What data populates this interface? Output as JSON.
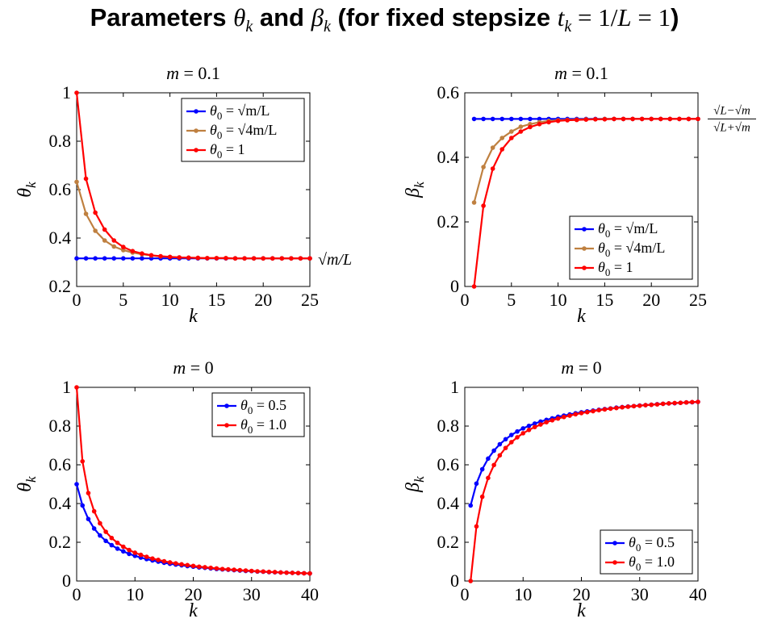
{
  "title": {
    "prefix": "Parameters ",
    "theta": "θ",
    "k1": "k",
    "and": " and ",
    "beta": "β",
    "k2": "k",
    "paren_open": " (for fixed stepsize ",
    "t": "t",
    "k3": "k",
    "eq": " = 1/",
    "L1": "L",
    "eq2": " = 1",
    "paren_close": ")"
  },
  "colors": {
    "blue": "#0000ff",
    "brown": "#bf8040",
    "red": "#ff0000"
  },
  "chart_data": [
    {
      "id": "theta_m01",
      "type": "line",
      "title": "m = 0.1",
      "xlabel": "k",
      "ylabel": "θk",
      "xlim": [
        0,
        25
      ],
      "ylim": [
        0.2,
        1
      ],
      "xticks": [
        0,
        5,
        10,
        15,
        20,
        25
      ],
      "yticks": [
        0.2,
        0.4,
        0.6,
        0.8,
        1
      ],
      "ytick_labels": [
        "0.2",
        "0.4",
        "0.6",
        "0.8",
        "1"
      ],
      "legend_position": "top-right",
      "annotation": "√m/L",
      "series": [
        {
          "name": "θ0 = √m/L",
          "color": "blue",
          "x": [
            0,
            1,
            2,
            3,
            4,
            5,
            6,
            7,
            8,
            9,
            10,
            11,
            12,
            13,
            14,
            15,
            16,
            17,
            18,
            19,
            20,
            21,
            22,
            23,
            24,
            25
          ],
          "y": [
            0.316,
            0.316,
            0.316,
            0.316,
            0.316,
            0.316,
            0.316,
            0.316,
            0.316,
            0.316,
            0.316,
            0.316,
            0.316,
            0.316,
            0.316,
            0.316,
            0.316,
            0.316,
            0.316,
            0.316,
            0.316,
            0.316,
            0.316,
            0.316,
            0.316,
            0.316
          ]
        },
        {
          "name": "θ0 = √4m/L",
          "color": "brown",
          "x": [
            0,
            1,
            2,
            3,
            4,
            5,
            6,
            7,
            8,
            9,
            10,
            11,
            12,
            13,
            14,
            15,
            16,
            17,
            18,
            19,
            20,
            21,
            22,
            23,
            24,
            25
          ],
          "y": [
            0.632,
            0.5,
            0.43,
            0.39,
            0.365,
            0.35,
            0.34,
            0.333,
            0.328,
            0.324,
            0.322,
            0.32,
            0.319,
            0.318,
            0.317,
            0.317,
            0.317,
            0.316,
            0.316,
            0.316,
            0.316,
            0.316,
            0.316,
            0.316,
            0.316,
            0.316
          ]
        },
        {
          "name": "θ0 = 1",
          "color": "red",
          "x": [
            0,
            1,
            2,
            3,
            4,
            5,
            6,
            7,
            8,
            9,
            10,
            11,
            12,
            13,
            14,
            15,
            16,
            17,
            18,
            19,
            20,
            21,
            22,
            23,
            24,
            25
          ],
          "y": [
            1.0,
            0.645,
            0.505,
            0.435,
            0.39,
            0.363,
            0.346,
            0.336,
            0.329,
            0.325,
            0.322,
            0.32,
            0.319,
            0.318,
            0.317,
            0.317,
            0.317,
            0.316,
            0.316,
            0.316,
            0.316,
            0.316,
            0.316,
            0.316,
            0.316,
            0.316
          ]
        }
      ]
    },
    {
      "id": "beta_m01",
      "type": "line",
      "title": "m = 0.1",
      "xlabel": "k",
      "ylabel": "βk",
      "xlim": [
        0,
        25
      ],
      "ylim": [
        0,
        0.6
      ],
      "xticks": [
        0,
        5,
        10,
        15,
        20,
        25
      ],
      "yticks": [
        0,
        0.2,
        0.4,
        0.6
      ],
      "ytick_labels": [
        "0",
        "0.2",
        "0.4",
        "0.6"
      ],
      "legend_position": "bottom-right",
      "annotation_num": "√L−√m",
      "annotation_den": "√L+√m",
      "series": [
        {
          "name": "θ0 = √m/L",
          "color": "blue",
          "x": [
            1,
            2,
            3,
            4,
            5,
            6,
            7,
            8,
            9,
            10,
            11,
            12,
            13,
            14,
            15,
            16,
            17,
            18,
            19,
            20,
            21,
            22,
            23,
            24,
            25
          ],
          "y": [
            0.519,
            0.519,
            0.519,
            0.519,
            0.519,
            0.519,
            0.519,
            0.519,
            0.519,
            0.519,
            0.519,
            0.519,
            0.519,
            0.519,
            0.519,
            0.519,
            0.519,
            0.519,
            0.519,
            0.519,
            0.519,
            0.519,
            0.519,
            0.519,
            0.519
          ]
        },
        {
          "name": "θ0 = √4m/L",
          "color": "brown",
          "x": [
            1,
            2,
            3,
            4,
            5,
            6,
            7,
            8,
            9,
            10,
            11,
            12,
            13,
            14,
            15,
            16,
            17,
            18,
            19,
            20,
            21,
            22,
            23,
            24,
            25
          ],
          "y": [
            0.26,
            0.37,
            0.43,
            0.46,
            0.48,
            0.495,
            0.503,
            0.509,
            0.513,
            0.515,
            0.516,
            0.517,
            0.518,
            0.518,
            0.519,
            0.519,
            0.519,
            0.519,
            0.519,
            0.519,
            0.519,
            0.519,
            0.519,
            0.519,
            0.519
          ]
        },
        {
          "name": "θ0 = 1",
          "color": "red",
          "x": [
            1,
            2,
            3,
            4,
            5,
            6,
            7,
            8,
            9,
            10,
            11,
            12,
            13,
            14,
            15,
            16,
            17,
            18,
            19,
            20,
            21,
            22,
            23,
            24,
            25
          ],
          "y": [
            0.0,
            0.25,
            0.365,
            0.425,
            0.46,
            0.48,
            0.494,
            0.503,
            0.509,
            0.513,
            0.515,
            0.516,
            0.517,
            0.518,
            0.518,
            0.519,
            0.519,
            0.519,
            0.519,
            0.519,
            0.519,
            0.519,
            0.519,
            0.519,
            0.519
          ]
        }
      ]
    },
    {
      "id": "theta_m0",
      "type": "line",
      "title": "m = 0",
      "xlabel": "k",
      "ylabel": "θk",
      "xlim": [
        0,
        40
      ],
      "ylim": [
        0,
        1
      ],
      "xticks": [
        0,
        10,
        20,
        30,
        40
      ],
      "yticks": [
        0,
        0.2,
        0.4,
        0.6,
        0.8,
        1
      ],
      "ytick_labels": [
        "0",
        "0.2",
        "0.4",
        "0.6",
        "0.8",
        "1"
      ],
      "legend_position": "top-right",
      "series": [
        {
          "name": "θ0 = 0.5",
          "color": "blue",
          "x": [
            0,
            1,
            2,
            3,
            4,
            5,
            6,
            7,
            8,
            9,
            10,
            11,
            12,
            13,
            14,
            15,
            16,
            17,
            18,
            19,
            20,
            21,
            22,
            23,
            24,
            25,
            26,
            27,
            28,
            29,
            30,
            31,
            32,
            33,
            34,
            35,
            36,
            37,
            38,
            39,
            40
          ],
          "y": [
            0.5,
            0.39,
            0.32,
            0.271,
            0.235,
            0.207,
            0.185,
            0.167,
            0.153,
            0.14,
            0.13,
            0.121,
            0.113,
            0.106,
            0.1,
            0.094,
            0.089,
            0.085,
            0.081,
            0.077,
            0.074,
            0.07,
            0.068,
            0.065,
            0.062,
            0.06,
            0.058,
            0.056,
            0.054,
            0.052,
            0.051,
            0.049,
            0.048,
            0.046,
            0.045,
            0.044,
            0.043,
            0.042,
            0.041,
            0.04,
            0.039
          ]
        },
        {
          "name": "θ0 = 1.0",
          "color": "red",
          "x": [
            0,
            1,
            2,
            3,
            4,
            5,
            6,
            7,
            8,
            9,
            10,
            11,
            12,
            13,
            14,
            15,
            16,
            17,
            18,
            19,
            20,
            21,
            22,
            23,
            24,
            25,
            26,
            27,
            28,
            29,
            30,
            31,
            32,
            33,
            34,
            35,
            36,
            37,
            38,
            39,
            40
          ],
          "y": [
            1.0,
            0.618,
            0.454,
            0.36,
            0.298,
            0.254,
            0.222,
            0.197,
            0.177,
            0.16,
            0.146,
            0.135,
            0.125,
            0.116,
            0.109,
            0.102,
            0.096,
            0.091,
            0.086,
            0.082,
            0.078,
            0.074,
            0.071,
            0.068,
            0.065,
            0.062,
            0.06,
            0.058,
            0.056,
            0.054,
            0.052,
            0.05,
            0.049,
            0.047,
            0.046,
            0.044,
            0.043,
            0.042,
            0.041,
            0.04,
            0.039
          ]
        }
      ]
    },
    {
      "id": "beta_m0",
      "type": "line",
      "title": "m = 0",
      "xlabel": "k",
      "ylabel": "βk",
      "xlim": [
        0,
        40
      ],
      "ylim": [
        0,
        1
      ],
      "xticks": [
        0,
        10,
        20,
        30,
        40
      ],
      "yticks": [
        0,
        0.2,
        0.4,
        0.6,
        0.8,
        1
      ],
      "ytick_labels": [
        "0",
        "0.2",
        "0.4",
        "0.6",
        "0.8",
        "1"
      ],
      "legend_position": "bottom-right",
      "series": [
        {
          "name": "θ0 = 0.5",
          "color": "blue",
          "x": [
            1,
            2,
            3,
            4,
            5,
            6,
            7,
            8,
            9,
            10,
            11,
            12,
            13,
            14,
            15,
            16,
            17,
            18,
            19,
            20,
            21,
            22,
            23,
            24,
            25,
            26,
            27,
            28,
            29,
            30,
            31,
            32,
            33,
            34,
            35,
            36,
            37,
            38,
            39,
            40
          ],
          "y": [
            0.39,
            0.503,
            0.577,
            0.632,
            0.673,
            0.706,
            0.732,
            0.754,
            0.772,
            0.788,
            0.801,
            0.813,
            0.823,
            0.832,
            0.84,
            0.848,
            0.854,
            0.86,
            0.866,
            0.871,
            0.876,
            0.88,
            0.884,
            0.888,
            0.891,
            0.895,
            0.898,
            0.901,
            0.903,
            0.906,
            0.908,
            0.91,
            0.913,
            0.915,
            0.917,
            0.918,
            0.92,
            0.922,
            0.923,
            0.925
          ]
        },
        {
          "name": "θ0 = 1.0",
          "color": "red",
          "x": [
            1,
            2,
            3,
            4,
            5,
            6,
            7,
            8,
            9,
            10,
            11,
            12,
            13,
            14,
            15,
            16,
            17,
            18,
            19,
            20,
            21,
            22,
            23,
            24,
            25,
            26,
            27,
            28,
            29,
            30,
            31,
            32,
            33,
            34,
            35,
            36,
            37,
            38,
            39,
            40
          ],
          "y": [
            0.0,
            0.282,
            0.435,
            0.532,
            0.599,
            0.649,
            0.687,
            0.717,
            0.742,
            0.763,
            0.78,
            0.795,
            0.808,
            0.82,
            0.83,
            0.839,
            0.847,
            0.854,
            0.861,
            0.867,
            0.872,
            0.877,
            0.882,
            0.886,
            0.89,
            0.893,
            0.897,
            0.9,
            0.903,
            0.905,
            0.908,
            0.91,
            0.912,
            0.915,
            0.917,
            0.919,
            0.92,
            0.922,
            0.924,
            0.925
          ]
        }
      ]
    }
  ]
}
